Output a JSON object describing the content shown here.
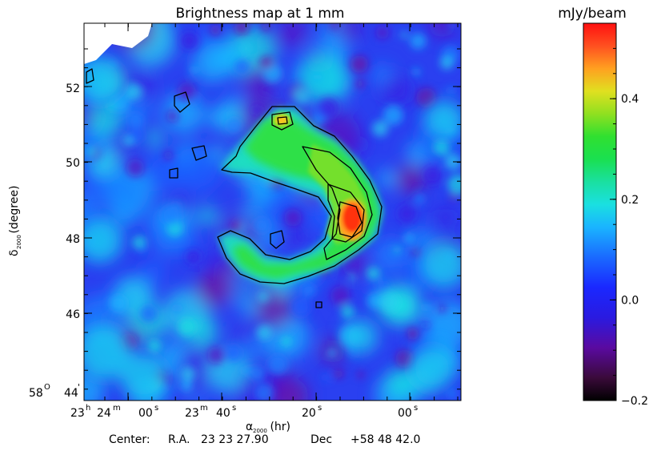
{
  "chart_data": {
    "type": "heatmap",
    "title": "Brightness map at 1 mm",
    "xlabel_main": "α",
    "xlabel_sub": "2000",
    "xlabel_unit": " (hr)",
    "ylabel_main": "δ",
    "ylabel_sub": "2000",
    "ylabel_unit": " (degree)",
    "colorbar_title": "mJy/beam",
    "colorbar_range": [
      -0.2,
      0.55
    ],
    "colorbar_ticks": [
      {
        "value": 0.4,
        "label": "0.4"
      },
      {
        "value": 0.2,
        "label": "0.2"
      },
      {
        "value": 0.0,
        "label": "0.0"
      },
      {
        "value": -0.2,
        "label": "−0.2"
      }
    ],
    "y_ticks": [
      {
        "value": 52,
        "label": "52"
      },
      {
        "value": 50,
        "label": "50"
      },
      {
        "value": 48,
        "label": "48"
      },
      {
        "value": 46,
        "label": "46"
      }
    ],
    "y_corner_label": {
      "deg": "58",
      "deg_sym": "O",
      "min": "44",
      "min_sym": "'"
    },
    "x_ticks": [
      {
        "h": "23",
        "hs": "h",
        "m": "24",
        "ms": "m",
        "s": "00",
        "ss": "s"
      },
      {
        "h": "23",
        "hs": "m",
        "m": "40",
        "ms": "s",
        "s": "",
        "ss": ""
      },
      {
        "h": "",
        "hs": "",
        "m": "20",
        "ms": "s",
        "s": "",
        "ss": ""
      },
      {
        "h": "",
        "hs": "",
        "m": "00",
        "ms": "s",
        "s": "",
        "ss": ""
      }
    ],
    "center_text": {
      "prefix": "Center:",
      "ra_label": "R.A.",
      "ra_value": "23 23 27.90",
      "dec_label": "Dec",
      "dec_value": "+58 48 42.0"
    },
    "features": {
      "peak_value": 0.55,
      "peak_position": "right side of ring, below center",
      "secondary_peak_value": 0.38,
      "secondary_peak_position": "top of ring",
      "structure": "bright shell (ring) with open gap on the left, emission ~0.15-0.3 along ring",
      "background_value": 0.0,
      "contours": "black contours on ring, closed around peaks"
    }
  }
}
